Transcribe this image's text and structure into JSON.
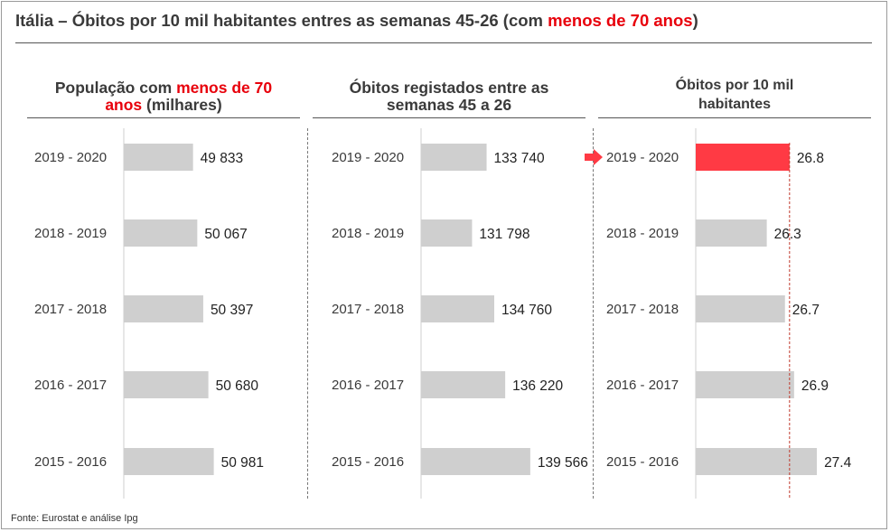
{
  "title": {
    "prefix": "Itália – Óbitos por 10 mil habitantes entres as semanas 45-26 (com ",
    "highlight": "menos de 70 anos",
    "suffix": ")"
  },
  "source": "Fonte: Eurostat e análise Ipg",
  "colors": {
    "bar": "#cfcfcf",
    "highlight_bar": "#ff3a44",
    "accent_text": "#e8000b",
    "reference_line": "#c0392b",
    "arrow": "#ff3a44"
  },
  "chart_data": [
    {
      "type": "bar",
      "orientation": "horizontal",
      "title_parts": [
        "População com ",
        "menos de 70",
        " anos",
        " (milhares)"
      ],
      "categories": [
        "2019 - 2020",
        "2018 - 2019",
        "2017 - 2018",
        "2016 - 2017",
        "2015 - 2016"
      ],
      "values": [
        49833,
        50067,
        50397,
        50680,
        50981
      ],
      "value_labels": [
        "49 833",
        "50 067",
        "50 397",
        "50 680",
        "50 981"
      ]
    },
    {
      "type": "bar",
      "orientation": "horizontal",
      "title_parts": [
        "Óbitos registados entre as",
        "semanas 45 a 26"
      ],
      "categories": [
        "2019 - 2020",
        "2018 - 2019",
        "2017 - 2018",
        "2016 - 2017",
        "2015 - 2016"
      ],
      "values": [
        133740,
        131798,
        134760,
        136220,
        139566
      ],
      "value_labels": [
        "133 740",
        "131 798",
        "134 760",
        "136 220",
        "139 566"
      ]
    },
    {
      "type": "bar",
      "orientation": "horizontal",
      "title_parts": [
        "Óbitos por 10 mil",
        "habitantes"
      ],
      "categories": [
        "2019 - 2020",
        "2018 - 2019",
        "2017 - 2018",
        "2016 - 2017",
        "2015 - 2016"
      ],
      "values": [
        26.8,
        26.3,
        26.7,
        26.9,
        27.4
      ],
      "value_labels": [
        "26.8",
        "26.3",
        "26.7",
        "26.9",
        "27.4"
      ],
      "highlight_index": 0,
      "reference_line_value": 26.8
    }
  ]
}
